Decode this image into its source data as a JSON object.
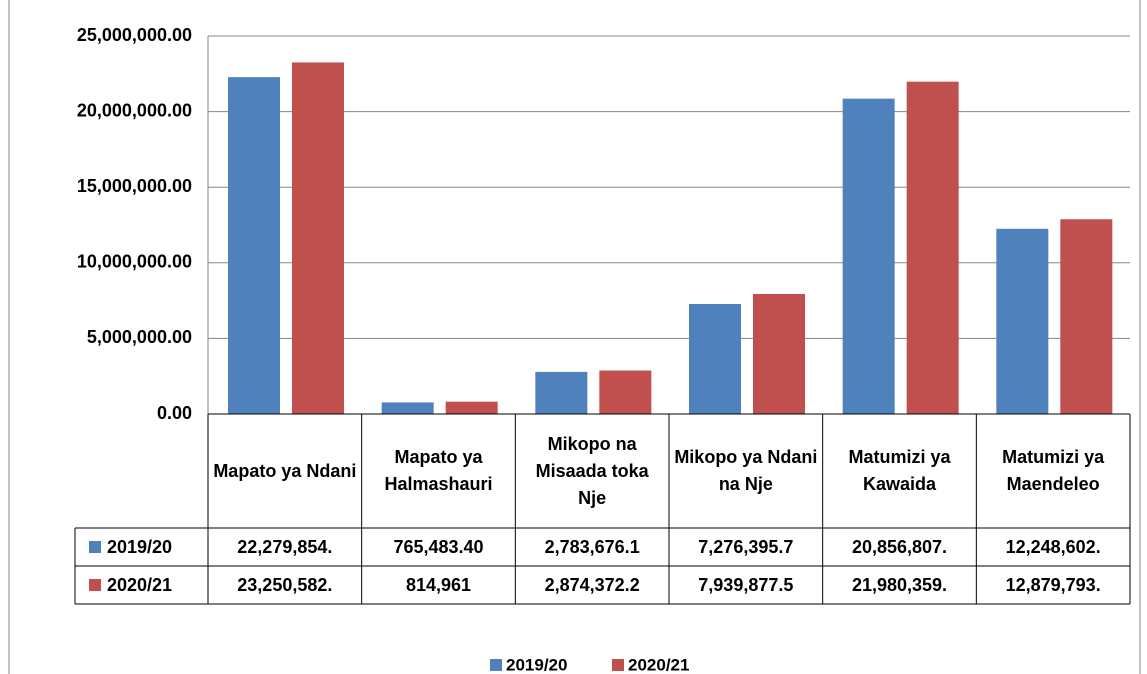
{
  "chart_data": {
    "type": "bar",
    "categories": [
      "Mapato ya Ndani",
      "Mapato ya Halmashauri",
      "Mikopo na Misaada toka Nje",
      "Mikopo ya Ndani na Nje",
      "Matumizi ya Kawaida",
      "Matumizi ya Maendeleo"
    ],
    "series": [
      {
        "name": "2019/20",
        "color": "#4f81bd",
        "values": [
          22279854,
          765483.4,
          2783676.1,
          7276395.7,
          20856807,
          12248602
        ],
        "value_labels": [
          "22,279,854.",
          "765,483.40",
          "2,783,676.1",
          "7,276,395.7",
          "20,856,807.",
          "12,248,602."
        ]
      },
      {
        "name": "2020/21",
        "color": "#c0504d",
        "values": [
          23250582,
          814961,
          2874372.2,
          7939877.5,
          21980359,
          12879793
        ],
        "value_labels": [
          "23,250,582.",
          "814,961",
          "2,874,372.2",
          "7,939,877.5",
          "21,980,359.",
          "12,879,793."
        ]
      }
    ],
    "ylim": [
      0,
      25000000
    ],
    "yticks": [
      {
        "value": 0,
        "label": "0.00"
      },
      {
        "value": 5000000,
        "label": "5,000,000.00"
      },
      {
        "value": 10000000,
        "label": "10,000,000.00"
      },
      {
        "value": 15000000,
        "label": "15,000,000.00"
      },
      {
        "value": 20000000,
        "label": "20,000,000.00"
      },
      {
        "value": 25000000,
        "label": "25,000,000.00"
      }
    ],
    "grid": true,
    "legend": "bottom"
  }
}
